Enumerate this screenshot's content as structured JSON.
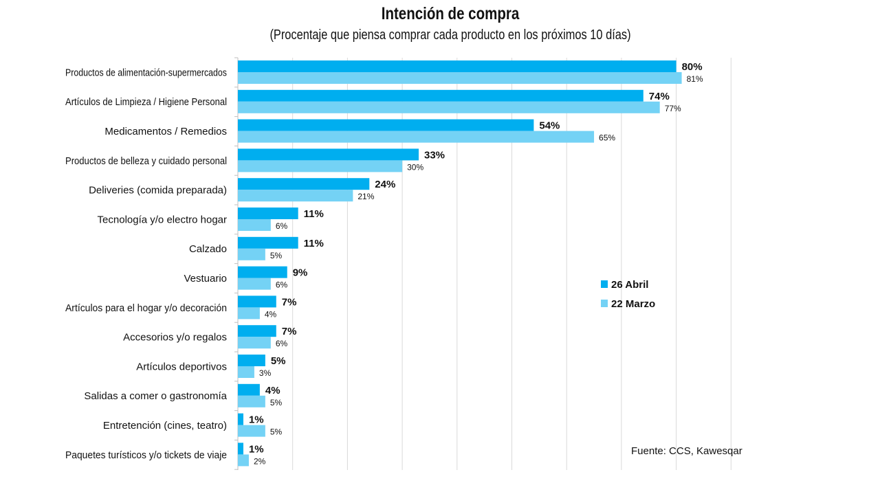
{
  "title": "Intención de compra",
  "subtitle": "(Procentaje que piensa comprar cada producto en los próximos 10 días)",
  "source": "Fuente: CCS, Kawesqar",
  "colors": {
    "primary": "#00AEEF",
    "secondary": "#74D2F5",
    "grid": "#d9d9d9"
  },
  "chart_data": {
    "type": "bar",
    "orientation": "horizontal",
    "xlim": [
      0,
      90
    ],
    "grid": true,
    "legend_position": "right",
    "categories": [
      "Productos de alimentación-supermercados",
      "Artículos de Limpieza / Higiene Personal",
      "Medicamentos / Remedios",
      "Productos de belleza y cuidado personal",
      "Deliveries (comida preparada)",
      "Tecnología y/o electro hogar",
      "Calzado",
      "Vestuario",
      "Artículos para el hogar y/o decoración",
      "Accesorios y/o regalos",
      "Artículos deportivos",
      "Salidas a comer o gastronomía",
      "Entretención (cines, teatro)",
      "Paquetes turísticos y/o tickets de viaje"
    ],
    "series": [
      {
        "name": "26 Abril",
        "values": [
          80,
          74,
          54,
          33,
          24,
          11,
          11,
          9,
          7,
          7,
          5,
          4,
          1,
          1
        ],
        "labels": [
          "80%",
          "74%",
          "54%",
          "33%",
          "24%",
          "11%",
          "11%",
          "9%",
          "7%",
          "7%",
          "5%",
          "4%",
          "1%",
          "1%"
        ]
      },
      {
        "name": "22 Marzo",
        "values": [
          81,
          77,
          65,
          30,
          21,
          6,
          5,
          6,
          4,
          6,
          3,
          5,
          5,
          2
        ],
        "labels": [
          "81%",
          "77%",
          "65%",
          "30%",
          "21%",
          "6%",
          "5%",
          "6%",
          "4%",
          "6%",
          "3%",
          "5%",
          "5%",
          "2%"
        ]
      }
    ]
  }
}
